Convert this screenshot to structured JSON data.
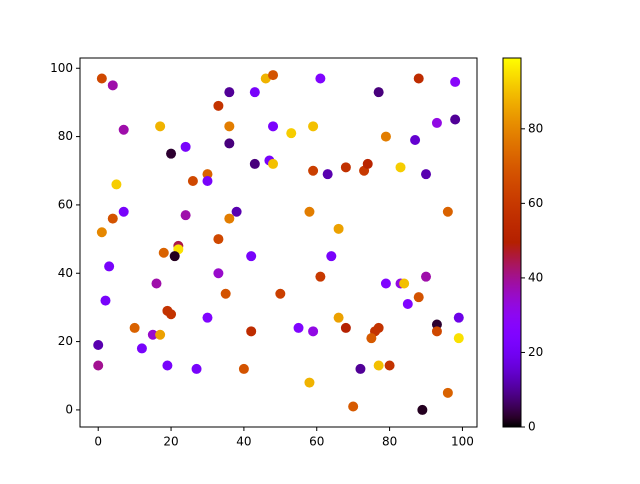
{
  "chart_data": {
    "type": "scatter",
    "x": [
      1,
      4,
      7,
      17,
      20,
      24,
      33,
      36,
      43,
      46,
      48,
      61,
      77,
      88,
      98,
      93,
      98,
      48,
      36,
      36,
      53,
      59,
      79,
      87,
      43,
      47,
      48,
      59,
      63,
      68,
      73,
      74,
      83,
      90,
      5,
      26,
      30,
      30,
      7,
      38,
      58,
      96,
      4,
      36,
      24,
      1,
      66,
      33,
      22,
      22,
      18,
      21,
      42,
      64,
      3,
      33,
      61,
      90,
      16,
      79,
      83,
      84,
      2,
      35,
      50,
      85,
      88,
      19,
      20,
      30,
      66,
      93,
      99,
      10,
      55,
      59,
      68,
      42,
      77,
      76,
      93,
      15,
      17,
      75,
      99,
      0,
      12,
      0,
      19,
      27,
      40,
      72,
      77,
      80,
      58,
      96,
      70,
      89
    ],
    "values": [
      97,
      95,
      82,
      83,
      75,
      77,
      89,
      93,
      93,
      97,
      98,
      97,
      93,
      97,
      96,
      84,
      85,
      83,
      83,
      78,
      81,
      83,
      80,
      79,
      72,
      73,
      72,
      70,
      69,
      71,
      70,
      72,
      71,
      69,
      66,
      67,
      69,
      67,
      58,
      58,
      58,
      58,
      56,
      56,
      57,
      52,
      53,
      50,
      48,
      47,
      46,
      45,
      45,
      45,
      42,
      40,
      39,
      39,
      37,
      37,
      37,
      37,
      32,
      34,
      34,
      31,
      33,
      29,
      28,
      27,
      27,
      25,
      27,
      24,
      24,
      23,
      24,
      23,
      24,
      23,
      23,
      22,
      22,
      21,
      21,
      19,
      18,
      13,
      13,
      12,
      12,
      12,
      13,
      13,
      8,
      5,
      1,
      0
    ],
    "c": [
      65,
      38,
      38,
      88,
      3,
      22,
      58,
      10,
      22,
      88,
      68,
      25,
      8,
      55,
      28,
      32,
      10,
      23,
      78,
      8,
      92,
      90,
      78,
      15,
      8,
      22,
      90,
      62,
      12,
      57,
      60,
      52,
      92,
      12,
      92,
      65,
      72,
      22,
      22,
      12,
      78,
      72,
      68,
      78,
      38,
      80,
      85,
      65,
      45,
      95,
      72,
      2,
      22,
      22,
      22,
      35,
      60,
      38,
      38,
      25,
      32,
      90,
      22,
      68,
      62,
      25,
      68,
      58,
      58,
      25,
      85,
      3,
      18,
      72,
      25,
      32,
      50,
      55,
      58,
      58,
      65,
      35,
      85,
      70,
      95,
      12,
      22,
      40,
      22,
      22,
      68,
      10,
      90,
      58,
      88,
      72,
      70,
      2
    ],
    "colormap": "gnuplot",
    "clim": [
      0,
      99
    ],
    "cticks": [
      0,
      20,
      40,
      60,
      80
    ],
    "xlim": [
      -5,
      104
    ],
    "ylim": [
      -5,
      103
    ],
    "xticks": [
      0,
      20,
      40,
      60,
      80,
      100
    ],
    "yticks": [
      0,
      20,
      40,
      60,
      80,
      100
    ]
  }
}
